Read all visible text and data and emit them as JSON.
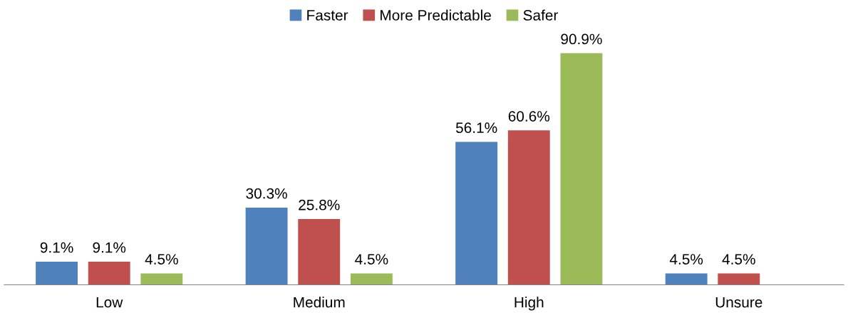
{
  "chart_data": {
    "type": "bar",
    "categories": [
      "Low",
      "Medium",
      "High",
      "Unsure"
    ],
    "series": [
      {
        "name": "Faster",
        "color": "#4f81bd",
        "values": [
          9.1,
          30.3,
          56.1,
          4.5
        ],
        "value_labels": [
          "9.1%",
          "30.3%",
          "56.1%",
          "4.5%"
        ]
      },
      {
        "name": "More Predictable",
        "color": "#c0504d",
        "values": [
          9.1,
          25.8,
          60.6,
          4.5
        ],
        "value_labels": [
          "9.1%",
          "25.8%",
          "60.6%",
          "4.5%"
        ]
      },
      {
        "name": "Safer",
        "color": "#9bbb59",
        "values": [
          4.5,
          4.5,
          90.9,
          null
        ],
        "value_labels": [
          "4.5%",
          "4.5%",
          "90.9%",
          null
        ]
      }
    ],
    "legend": "top",
    "grid": false
  }
}
